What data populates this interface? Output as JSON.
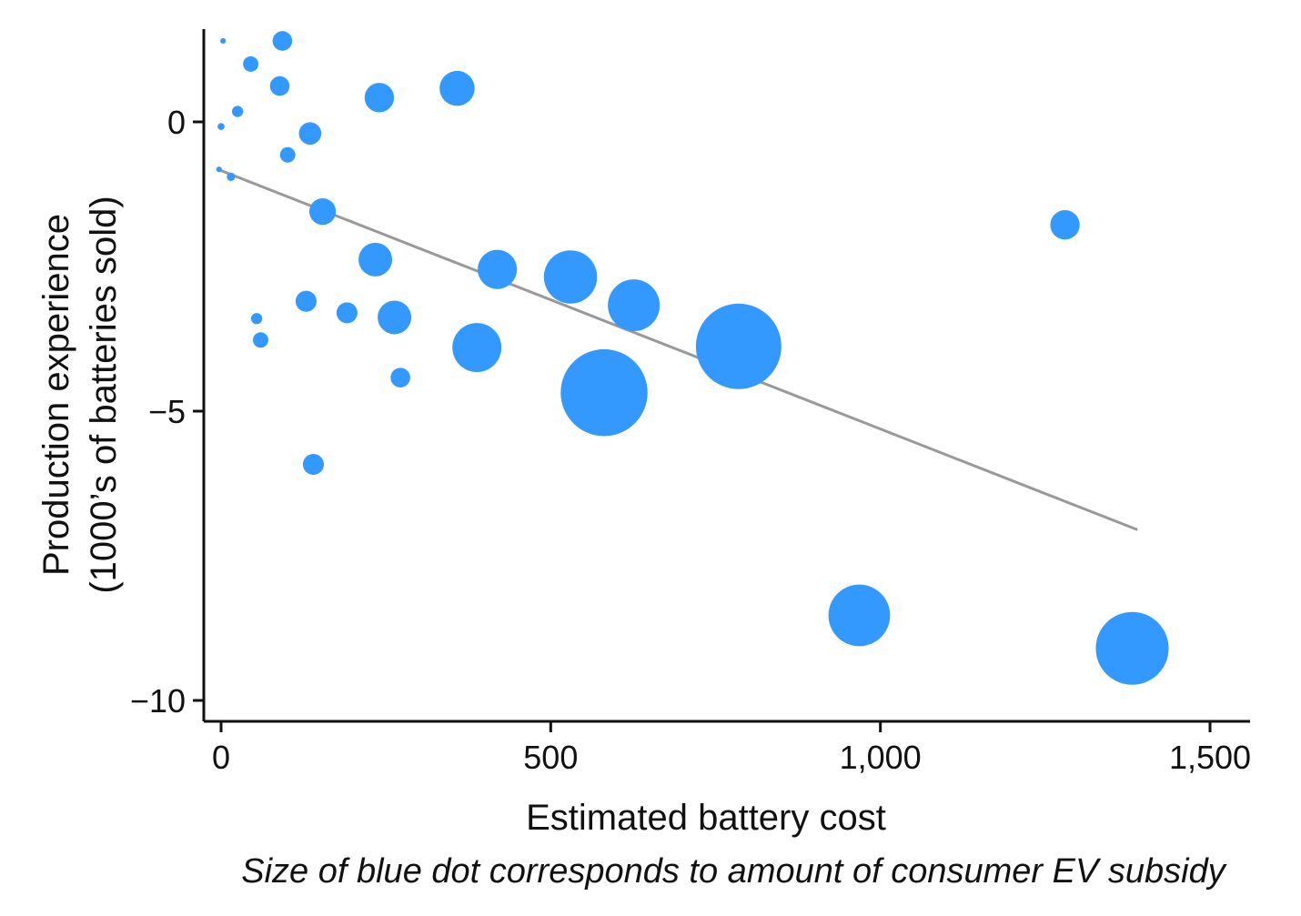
{
  "chart_data": {
    "type": "scatter",
    "xlabel": "Estimated battery cost",
    "ylabel_lines": [
      "Production experience",
      "(1000’s of batteries sold)"
    ],
    "caption": "Size of blue dot corresponds to amount of consumer EV subsidy",
    "xlim": [
      -50,
      1560
    ],
    "ylim": [
      -10.3,
      1.6
    ],
    "x_ticks": [
      0,
      500,
      1000,
      1500
    ],
    "x_tick_labels": [
      "0",
      "500",
      "1,000",
      "1,500"
    ],
    "y_ticks": [
      0,
      -5,
      -10
    ],
    "y_tick_labels": [
      "0",
      "−5",
      "−10"
    ],
    "point_color": "#3399ff",
    "trend_color": "#999999",
    "trend_line": {
      "x": [
        -5,
        1390
      ],
      "y": [
        -0.82,
        -7.05
      ]
    },
    "points": [
      {
        "x": 3,
        "y": 1.4,
        "size": 0.4
      },
      {
        "x": 93,
        "y": 1.4,
        "size": 1.4
      },
      {
        "x": 45,
        "y": 1.0,
        "size": 1.1
      },
      {
        "x": 89,
        "y": 0.62,
        "size": 1.4
      },
      {
        "x": 240,
        "y": 0.42,
        "size": 2.1
      },
      {
        "x": 358,
        "y": 0.58,
        "size": 2.5
      },
      {
        "x": 25,
        "y": 0.18,
        "size": 0.8
      },
      {
        "x": 0,
        "y": -0.08,
        "size": 0.5
      },
      {
        "x": 135,
        "y": -0.2,
        "size": 1.6
      },
      {
        "x": 101,
        "y": -0.57,
        "size": 1.1
      },
      {
        "x": -3,
        "y": -0.82,
        "size": 0.4
      },
      {
        "x": 15,
        "y": -0.95,
        "size": 0.6
      },
      {
        "x": 154,
        "y": -1.55,
        "size": 1.9
      },
      {
        "x": 234,
        "y": -2.38,
        "size": 2.4
      },
      {
        "x": 419,
        "y": -2.55,
        "size": 2.8
      },
      {
        "x": 530,
        "y": -2.68,
        "size": 3.8
      },
      {
        "x": 626,
        "y": -3.17,
        "size": 3.7
      },
      {
        "x": 129,
        "y": -3.1,
        "size": 1.5
      },
      {
        "x": 191,
        "y": -3.3,
        "size": 1.5
      },
      {
        "x": 263,
        "y": -3.38,
        "size": 2.4
      },
      {
        "x": 54,
        "y": -3.4,
        "size": 0.8
      },
      {
        "x": 60,
        "y": -3.77,
        "size": 1.1
      },
      {
        "x": 388,
        "y": -3.9,
        "size": 3.5
      },
      {
        "x": 785,
        "y": -3.88,
        "size": 6.1
      },
      {
        "x": 272,
        "y": -4.42,
        "size": 1.4
      },
      {
        "x": 581,
        "y": -4.68,
        "size": 6.2
      },
      {
        "x": 140,
        "y": -5.92,
        "size": 1.5
      },
      {
        "x": 1280,
        "y": -1.78,
        "size": 2.1
      },
      {
        "x": 968,
        "y": -8.53,
        "size": 4.4
      },
      {
        "x": 1382,
        "y": -9.1,
        "size": 5.2
      }
    ]
  }
}
